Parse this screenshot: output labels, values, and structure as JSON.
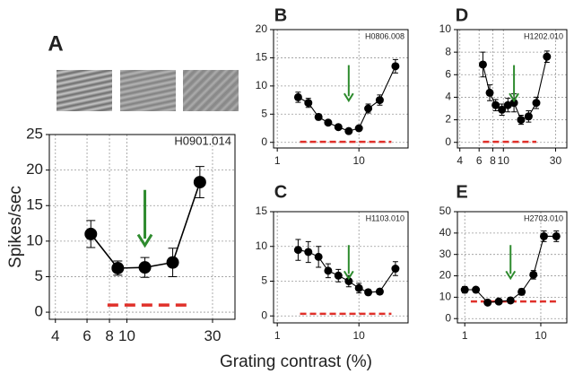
{
  "xlabel": "Grating contrast (%)",
  "chart_data": [
    {
      "type": "line",
      "title": "A",
      "annotation": "H0901.014",
      "ylabel": "Spikes/sec",
      "log_x": true,
      "grid": true,
      "x": [
        6.3,
        8.9,
        12.6,
        18,
        25.5
      ],
      "series": [
        {
          "color": "#000000",
          "values": [
            11,
            6.2,
            6.3,
            7,
            18.3
          ],
          "errors": [
            1.9,
            1,
            1.4,
            2,
            2.2
          ]
        }
      ],
      "baseline": {
        "x": [
          7.8,
          23
        ],
        "y": 1,
        "color": "#e0302a"
      },
      "arrow": {
        "x": 12.6,
        "color": "#2e8b2e"
      },
      "xlim": [
        3.7,
        40
      ],
      "ylim": [
        -1,
        25
      ],
      "xticks": [
        4,
        6,
        8,
        10,
        30
      ],
      "yticks": [
        0,
        5,
        10,
        15,
        20,
        25
      ]
    },
    {
      "type": "line",
      "title": "B",
      "annotation": "H0806.008",
      "log_x": true,
      "grid": true,
      "x": [
        1.8,
        2.4,
        3.2,
        4.2,
        5.6,
        7.5,
        10,
        13,
        18,
        28
      ],
      "series": [
        {
          "color": "#000000",
          "values": [
            8,
            7,
            4.5,
            3.5,
            2.7,
            2,
            2.5,
            6,
            7.5,
            13.5
          ],
          "errors": [
            0.9,
            0.8,
            0.5,
            0.4,
            0.4,
            0.3,
            0.4,
            0.8,
            0.9,
            1.2
          ]
        }
      ],
      "baseline": {
        "x": [
          1.9,
          25
        ],
        "y": 0.1,
        "color": "#e0302a"
      },
      "arrow": {
        "x": 7.5,
        "color": "#2e8b2e"
      },
      "xlim": [
        0.9,
        40
      ],
      "ylim": [
        -1,
        20
      ],
      "xticks": [
        1,
        10
      ],
      "yticks": [
        0,
        5,
        10,
        15,
        20
      ]
    },
    {
      "type": "line",
      "title": "C",
      "annotation": "H1103.010",
      "log_x": true,
      "grid": true,
      "x": [
        1.8,
        2.4,
        3.2,
        4.2,
        5.6,
        7.5,
        10,
        13,
        18,
        28
      ],
      "series": [
        {
          "color": "#000000",
          "values": [
            9.5,
            9.2,
            8.5,
            6.5,
            5.8,
            5,
            4,
            3.4,
            3.5,
            6.8
          ],
          "errors": [
            1.5,
            1.5,
            1.5,
            1,
            0.9,
            0.8,
            0.7,
            0.4,
            0.4,
            1
          ]
        }
      ],
      "baseline": {
        "x": [
          1.9,
          25
        ],
        "y": 0.3,
        "color": "#e0302a"
      },
      "arrow": {
        "x": 7.5,
        "color": "#2e8b2e"
      },
      "xlim": [
        0.9,
        40
      ],
      "ylim": [
        -1,
        15
      ],
      "xticks": [
        1,
        10
      ],
      "yticks": [
        0,
        5,
        10,
        15
      ]
    },
    {
      "type": "line",
      "title": "D",
      "annotation": "H1202.010",
      "log_x": true,
      "grid": true,
      "x": [
        6.5,
        7.5,
        8.5,
        9.7,
        11,
        12.5,
        14.5,
        17,
        20,
        25
      ],
      "series": [
        {
          "color": "#000000",
          "values": [
            6.9,
            4.4,
            3.3,
            2.9,
            3.3,
            3.5,
            2,
            2.3,
            3.5,
            7.6
          ],
          "errors": [
            1.1,
            0.7,
            0.5,
            0.5,
            0.6,
            0.8,
            0.4,
            0.5,
            0.5,
            0.5
          ]
        }
      ],
      "baseline": {
        "x": [
          6.5,
          20
        ],
        "y": 0.05,
        "color": "#e0302a"
      },
      "arrow": {
        "x": 12.5,
        "color": "#2e8b2e"
      },
      "xlim": [
        3.8,
        38
      ],
      "ylim": [
        -0.5,
        10
      ],
      "xticks": [
        4,
        6,
        8,
        10,
        30
      ],
      "yticks": [
        0,
        2,
        4,
        6,
        8,
        10
      ]
    },
    {
      "type": "line",
      "title": "E",
      "annotation": "H2703.010",
      "log_x": true,
      "grid": true,
      "x": [
        1,
        1.4,
        2,
        2.8,
        4,
        5.6,
        8,
        11,
        16
      ],
      "series": [
        {
          "color": "#000000",
          "values": [
            13.5,
            13.5,
            7.5,
            8,
            8.5,
            12.5,
            20.5,
            38.5,
            38.5
          ],
          "errors": [
            1.5,
            1,
            1,
            1,
            1,
            1.5,
            2,
            2.5,
            2.5
          ]
        }
      ],
      "baseline": {
        "x": [
          1.2,
          16
        ],
        "y": 8,
        "color": "#e0302a"
      },
      "arrow": {
        "x": 4,
        "color": "#2e8b2e"
      },
      "xlim": [
        0.8,
        22
      ],
      "ylim": [
        -2,
        50
      ],
      "xticks": [
        1,
        10
      ],
      "yticks": [
        0,
        10,
        20,
        30,
        40,
        50
      ]
    }
  ]
}
